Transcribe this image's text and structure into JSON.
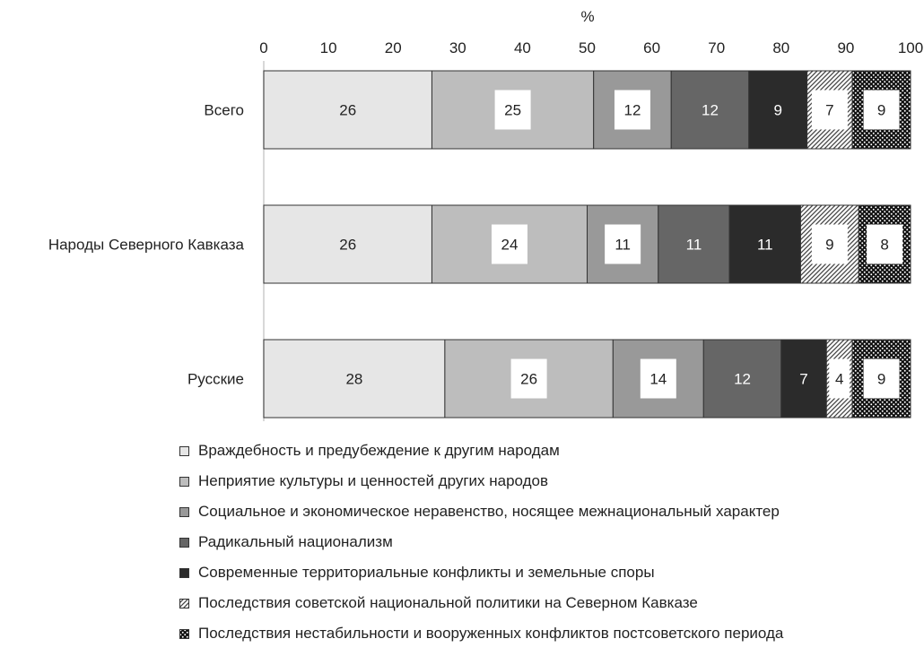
{
  "chart_data": {
    "type": "bar",
    "orientation": "horizontal",
    "stacked": true,
    "xlabel": "%",
    "xlim": [
      0,
      100
    ],
    "xticks": [
      "0",
      "10",
      "20",
      "30",
      "40",
      "50",
      "60",
      "70",
      "80",
      "90",
      "100"
    ],
    "categories": [
      "Всего",
      "Народы Северного Кавказа",
      "Русские"
    ],
    "series": [
      {
        "name": "Враждебность и предубеждение к другим народам",
        "values": [
          26,
          26,
          28
        ],
        "color": "#e6e6e6",
        "pattern": "solid"
      },
      {
        "name": "Неприятие культуры и ценностей других народов",
        "values": [
          25,
          24,
          26
        ],
        "color": "#bdbdbd",
        "pattern": "solid"
      },
      {
        "name": "Социальное и экономическое неравенство, носящее межнациональный характер",
        "values": [
          12,
          11,
          14
        ],
        "color": "#999999",
        "pattern": "solid"
      },
      {
        "name": "Радикальный  национализм",
        "values": [
          12,
          11,
          12
        ],
        "color": "#666666",
        "pattern": "solid"
      },
      {
        "name": "Современные территориальные конфликты и земельные споры",
        "values": [
          9,
          11,
          7
        ],
        "color": "#2b2b2b",
        "pattern": "solid"
      },
      {
        "name": "Последствия советской национальной политики на Северном Кавказе",
        "values": [
          7,
          9,
          4
        ],
        "color": "#444444",
        "pattern": "diagonal-hatch"
      },
      {
        "name": "Последствия нестабильности  и вооруженных конфликтов постсоветского периода",
        "values": [
          9,
          8,
          9
        ],
        "color": "#111111",
        "pattern": "dots"
      }
    ],
    "legend_position": "bottom",
    "grid": false
  }
}
